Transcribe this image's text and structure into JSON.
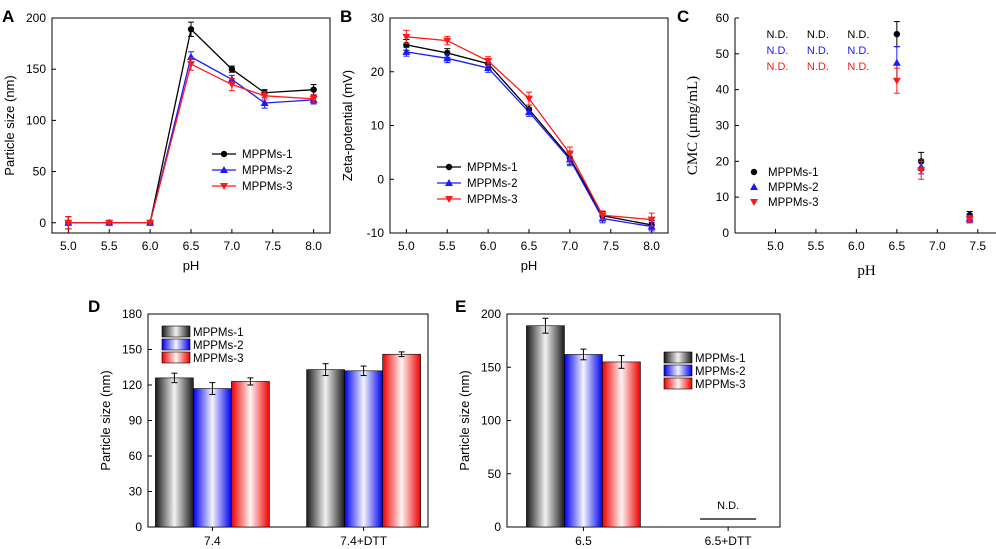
{
  "colors": {
    "MPPMs-1": "#000000",
    "MPPMs-2": "#1a1aff",
    "MPPMs-3": "#ff1a1a"
  },
  "chart_data": [
    {
      "panel": "A",
      "type": "line",
      "xlabel": "pH",
      "ylabel": "Particle size (nm)",
      "xlim": [
        4.8,
        8.2
      ],
      "ylim": [
        -10,
        200
      ],
      "xticks": [
        "5.0",
        "5.5",
        "6.0",
        "6.5",
        "7.0",
        "7.5",
        "8.0"
      ],
      "yticks": [
        "0",
        "50",
        "100",
        "150",
        "200"
      ],
      "x": [
        5.0,
        5.5,
        6.0,
        6.5,
        7.0,
        7.4,
        8.0
      ],
      "legend_position": "center-right",
      "series": [
        {
          "name": "MPPMs-1",
          "marker": "circle",
          "values": [
            0,
            0,
            0,
            189,
            150,
            127,
            130
          ],
          "err": [
            6,
            0,
            0,
            7,
            3,
            3,
            5
          ]
        },
        {
          "name": "MPPMs-2",
          "marker": "triangle-up",
          "values": [
            0,
            0,
            0,
            162,
            140,
            117,
            120
          ],
          "err": [
            6,
            0,
            0,
            5,
            4,
            5,
            4
          ]
        },
        {
          "name": "MPPMs-3",
          "marker": "triangle-down",
          "values": [
            0,
            0,
            0,
            155,
            135,
            124,
            121
          ],
          "err": [
            6,
            0,
            0,
            6,
            6,
            4,
            4
          ]
        }
      ]
    },
    {
      "panel": "B",
      "type": "line",
      "xlabel": "pH",
      "ylabel": "Zeta-potential (mV)",
      "xlim": [
        4.8,
        8.2
      ],
      "ylim": [
        -10,
        30
      ],
      "xticks": [
        "5.0",
        "5.5",
        "6.0",
        "6.5",
        "7.0",
        "7.5",
        "8.0"
      ],
      "yticks": [
        "-10",
        "0",
        "10",
        "20",
        "30"
      ],
      "x": [
        5.0,
        5.5,
        6.0,
        6.5,
        7.0,
        7.4,
        8.0
      ],
      "legend_position": "center-left",
      "series": [
        {
          "name": "MPPMs-1",
          "marker": "circle",
          "values": [
            25.0,
            23.5,
            21.5,
            13.0,
            4.0,
            -6.8,
            -8.5
          ],
          "err": [
            1,
            0.8,
            0.8,
            0.8,
            1.2,
            0.8,
            0.8
          ]
        },
        {
          "name": "MPPMs-2",
          "marker": "triangle-up",
          "values": [
            23.7,
            22.5,
            20.7,
            12.5,
            3.7,
            -7.3,
            -8.8
          ],
          "err": [
            0.8,
            0.8,
            0.8,
            0.8,
            1.2,
            0.8,
            0.8
          ]
        },
        {
          "name": "MPPMs-3",
          "marker": "triangle-down",
          "values": [
            26.5,
            25.8,
            22.0,
            15.0,
            4.8,
            -6.7,
            -7.5
          ],
          "err": [
            1.2,
            0.8,
            0.8,
            1.2,
            1.2,
            0.8,
            1.2
          ]
        }
      ]
    },
    {
      "panel": "C",
      "type": "scatter",
      "xlabel": "pH",
      "ylabel": "CMC (μmg/mL)",
      "xlim": [
        4.5,
        7.75
      ],
      "ylim": [
        0,
        60
      ],
      "xticks": [
        "5.0",
        "5.5",
        "6.0",
        "6.5",
        "7.0",
        "7.5"
      ],
      "yticks": [
        "0",
        "10",
        "20",
        "30",
        "40",
        "50",
        "60"
      ],
      "x": [
        6.5,
        6.8,
        7.4
      ],
      "legend_position": "center-left",
      "not_detected_label": "N.D.",
      "not_detected_at": [
        5.0,
        5.5,
        6.0
      ],
      "series": [
        {
          "name": "MPPMs-1",
          "marker": "circle",
          "values": [
            55.5,
            20.0,
            5.0
          ],
          "err": [
            3.5,
            2.5,
            1.0
          ]
        },
        {
          "name": "MPPMs-2",
          "marker": "triangle-up",
          "values": [
            47.5,
            18.5,
            4.0
          ],
          "err": [
            4.5,
            2.0,
            1.0
          ]
        },
        {
          "name": "MPPMs-3",
          "marker": "triangle-down",
          "values": [
            42.5,
            17.5,
            3.8
          ],
          "err": [
            3.5,
            2.5,
            1.0
          ]
        }
      ]
    },
    {
      "panel": "D",
      "type": "bar",
      "ylabel": "Particle size (nm)",
      "ylim": [
        0,
        180
      ],
      "yticks": [
        "0",
        "30",
        "60",
        "90",
        "120",
        "150",
        "180"
      ],
      "categories": [
        "7.4",
        "7.4+DTT"
      ],
      "legend_position": "top-left",
      "series": [
        {
          "name": "MPPMs-1",
          "values": [
            126,
            133
          ],
          "err": [
            4,
            5
          ]
        },
        {
          "name": "MPPMs-2",
          "values": [
            117,
            132
          ],
          "err": [
            5,
            4
          ]
        },
        {
          "name": "MPPMs-3",
          "values": [
            123,
            146
          ],
          "err": [
            3,
            2
          ]
        }
      ]
    },
    {
      "panel": "E",
      "type": "bar",
      "ylabel": "Particle size (nm)",
      "ylim": [
        0,
        200
      ],
      "yticks": [
        "0",
        "50",
        "100",
        "150",
        "200"
      ],
      "categories": [
        "6.5",
        "6.5+DTT"
      ],
      "legend_position": "center-right",
      "not_detected_label": "N.D.",
      "series": [
        {
          "name": "MPPMs-1",
          "values": [
            189,
            null
          ],
          "err": [
            7,
            0
          ]
        },
        {
          "name": "MPPMs-2",
          "values": [
            162,
            null
          ],
          "err": [
            5,
            0
          ]
        },
        {
          "name": "MPPMs-3",
          "values": [
            155,
            null
          ],
          "err": [
            6,
            0
          ]
        }
      ]
    }
  ]
}
